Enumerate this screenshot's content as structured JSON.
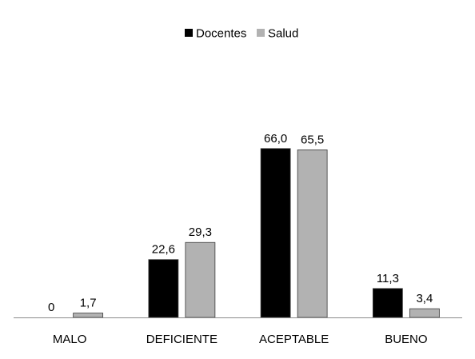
{
  "chart_data": {
    "type": "bar",
    "categories": [
      "MALO",
      "DEFICIENTE",
      "ACEPTABLE",
      "BUENO"
    ],
    "series": [
      {
        "name": "Docentes",
        "values": [
          0,
          22.6,
          66.0,
          11.3
        ],
        "labels": [
          "0",
          "22,6",
          "66,0",
          "11,3"
        ],
        "color": "#000000"
      },
      {
        "name": "Salud",
        "values": [
          1.7,
          29.3,
          65.5,
          3.4
        ],
        "labels": [
          "1,7",
          "29,3",
          "65,5",
          "3,4"
        ],
        "color": "#b2b2b2"
      }
    ],
    "ylim": [
      0,
      70
    ],
    "grid": false,
    "legend_position": "top-center"
  }
}
